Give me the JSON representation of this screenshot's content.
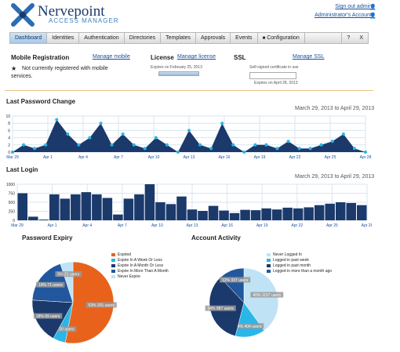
{
  "app": {
    "name": "Nervepoint",
    "subtitle": "ACCESS MANAGER"
  },
  "header": {
    "sign_out": "Sign out admin",
    "account": "Administrator's Account"
  },
  "nav": {
    "tabs": [
      "Dashboard",
      "Identities",
      "Authentication",
      "Directories",
      "Templates",
      "Approvals",
      "Events",
      "Configuration"
    ],
    "active": "Dashboard",
    "help": "?",
    "close": "X"
  },
  "mobile": {
    "title": "Mobile Registration",
    "link": "Manage mobile",
    "status": "Not currently registered with mobile services."
  },
  "license": {
    "title": "License",
    "link": "Manage license",
    "expiry": "Expires on February 25, 2013"
  },
  "ssl": {
    "title": "SSL",
    "link": "Manage SSL",
    "cert": "Self-signed certificate in use",
    "expiry": "Expires on April 28, 2013"
  },
  "colors": {
    "navy": "#1b3a6b",
    "cyan": "#29b6e8",
    "orange": "#e8621c",
    "lightblue": "#bfe3f5",
    "grid": "#d7e6f2"
  },
  "chart_data": [
    {
      "type": "area",
      "title": "Last Password Change",
      "range": "March 29, 2013 to April 29, 2013",
      "x_ticks": [
        "Mar 29",
        "Apr 1",
        "Apr 4",
        "Apr 7",
        "Apr 10",
        "Apr 13",
        "Apr 16",
        "Apr 19",
        "Apr 22",
        "Apr 25",
        "Apr 28"
      ],
      "y_ticks": [
        0,
        2,
        4,
        6,
        8,
        10
      ],
      "ylim": [
        0,
        10
      ],
      "values": [
        0,
        2,
        1,
        2,
        9,
        5,
        2,
        4,
        8,
        2,
        5,
        2,
        1,
        4,
        2,
        0,
        6,
        2,
        1,
        8,
        2,
        0,
        2,
        2,
        1,
        3,
        1,
        1,
        2,
        3,
        5,
        1,
        0
      ]
    },
    {
      "type": "bar",
      "title": "Last Login",
      "range": "March 29, 2013 to April 29, 2013",
      "x_ticks": [
        "Mar 29",
        "Apr 1",
        "Apr 4",
        "Apr 7",
        "Apr 10",
        "Apr 13",
        "Apr 16",
        "Apr 19",
        "Apr 22",
        "Apr 25",
        "Apr 28"
      ],
      "y_ticks": [
        0,
        250,
        500,
        750,
        1000
      ],
      "ylim": [
        0,
        1000
      ],
      "values": [
        750,
        100,
        20,
        720,
        600,
        720,
        780,
        720,
        620,
        160,
        600,
        720,
        1000,
        500,
        450,
        660,
        300,
        260,
        400,
        270,
        200,
        290,
        280,
        330,
        300,
        350,
        330,
        360,
        420,
        460,
        500,
        480,
        420
      ]
    },
    {
      "type": "pie",
      "title": "Password Expiry",
      "legend": [
        "Expired",
        "Expire In A Week Or Less",
        "Expire In A Month Or Less",
        "Expire In More Than A Month",
        "Never Expire"
      ],
      "values": [
        53,
        5,
        18,
        19,
        5
      ],
      "labels": [
        "53% 201 users",
        "5% 20 users",
        "18% 69 users",
        "19% 71 users",
        "5% 21 users"
      ],
      "colors": [
        "#e8621c",
        "#29b6e8",
        "#1b3a6b",
        "#22579e",
        "#bfe3f5"
      ]
    },
    {
      "type": "pie",
      "title": "Account Activity",
      "legend": [
        "Never Logged In",
        "Logged in past week",
        "Logged in past month",
        "Logged in more than a month ago"
      ],
      "values": [
        40,
        14,
        34,
        12
      ],
      "labels": [
        "40% 1157 users",
        "14% 404 users",
        "34% 987 users",
        "12% 337 users"
      ],
      "colors": [
        "#bfe3f5",
        "#29b6e8",
        "#1b3a6b",
        "#22579e"
      ]
    }
  ]
}
